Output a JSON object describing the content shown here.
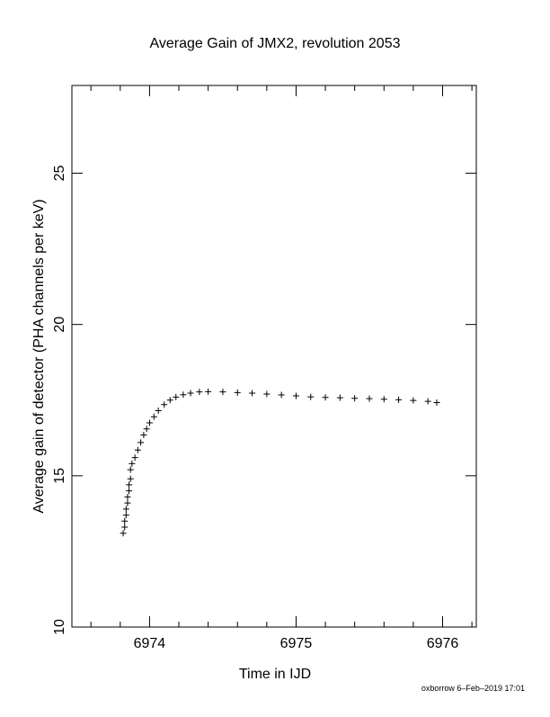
{
  "chart_data": {
    "type": "scatter",
    "title": "Average Gain of JMX2, revolution 2053",
    "x_label": "Time in IJD",
    "y_label": "Average gain of detector (PHA channels per keV)",
    "footer": "oxborrow  6–Feb–2019 17:01",
    "marker": "+",
    "color": "#000000",
    "xlim": [
      6973.47,
      6976.23
    ],
    "ylim": [
      10,
      27.9
    ],
    "xticks": [
      6974,
      6975,
      6976
    ],
    "x_minor_ticks": [
      6973.6,
      6973.8,
      6974.2,
      6974.4,
      6974.6,
      6974.8,
      6975.2,
      6975.4,
      6975.6,
      6975.8,
      6976.2
    ],
    "yticks": [
      10,
      15,
      20,
      25
    ],
    "x": [
      6973.82,
      6973.83,
      6973.83,
      6973.84,
      6973.84,
      6973.85,
      6973.85,
      6973.86,
      6973.86,
      6973.87,
      6973.87,
      6973.88,
      6973.9,
      6973.92,
      6973.94,
      6973.96,
      6973.98,
      6974.0,
      6974.03,
      6974.06,
      6974.1,
      6974.14,
      6974.18,
      6974.23,
      6974.28,
      6974.34,
      6974.4,
      6974.5,
      6974.6,
      6974.7,
      6974.8,
      6974.9,
      6975.0,
      6975.1,
      6975.2,
      6975.3,
      6975.4,
      6975.5,
      6975.6,
      6975.7,
      6975.8,
      6975.9,
      6975.96
    ],
    "values": [
      13.1,
      13.3,
      13.5,
      13.7,
      13.9,
      14.1,
      14.3,
      14.5,
      14.7,
      14.9,
      15.2,
      15.4,
      15.6,
      15.85,
      16.1,
      16.35,
      16.55,
      16.75,
      16.95,
      17.15,
      17.35,
      17.5,
      17.6,
      17.68,
      17.73,
      17.77,
      17.78,
      17.77,
      17.75,
      17.73,
      17.7,
      17.67,
      17.64,
      17.61,
      17.59,
      17.58,
      17.56,
      17.55,
      17.53,
      17.51,
      17.49,
      17.46,
      17.42
    ]
  }
}
